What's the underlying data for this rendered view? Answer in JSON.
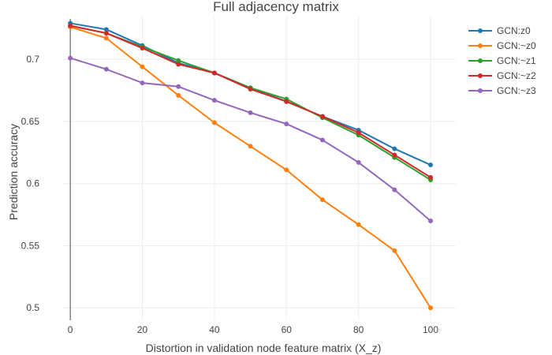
{
  "chart_data": {
    "type": "line",
    "title": "Full adjacency matrix",
    "xlabel": "Distortion in validation node feature matrix (X_z)",
    "ylabel": "Prediction accuracy",
    "xlim": [
      -2,
      107
    ],
    "ylim": [
      0.49,
      0.735
    ],
    "xticks": [
      0,
      20,
      40,
      60,
      80,
      100
    ],
    "xtick_labels": [
      "0",
      "20",
      "40",
      "60",
      "80",
      "100"
    ],
    "yticks": [
      0.5,
      0.55,
      0.6,
      0.65,
      0.7
    ],
    "ytick_labels": [
      "0.5",
      "0.55",
      "0.6",
      "0.65",
      "0.7"
    ],
    "grid": true,
    "legend_position": "top-right",
    "x": [
      0,
      10,
      20,
      30,
      40,
      50,
      60,
      70,
      80,
      90,
      100
    ],
    "series": [
      {
        "name": "GCN:z0",
        "color": "#1f77b4",
        "values": [
          0.729,
          0.724,
          0.711,
          0.697,
          0.689,
          0.677,
          0.666,
          0.654,
          0.643,
          0.628,
          0.615
        ]
      },
      {
        "name": "GCN:~z0",
        "color": "#ff7f0e",
        "values": [
          0.726,
          0.717,
          0.694,
          0.671,
          0.649,
          0.63,
          0.611,
          0.587,
          0.567,
          0.546,
          0.5
        ]
      },
      {
        "name": "GCN:~z1",
        "color": "#2ca02c",
        "values": [
          0.727,
          0.721,
          0.71,
          0.699,
          0.689,
          0.677,
          0.668,
          0.653,
          0.639,
          0.621,
          0.603
        ]
      },
      {
        "name": "GCN:~z2",
        "color": "#d62728",
        "values": [
          0.727,
          0.721,
          0.709,
          0.696,
          0.689,
          0.676,
          0.666,
          0.654,
          0.641,
          0.623,
          0.605
        ]
      },
      {
        "name": "GCN:~z3",
        "color": "#9467bd",
        "values": [
          0.701,
          0.692,
          0.681,
          0.678,
          0.667,
          0.657,
          0.648,
          0.635,
          0.617,
          0.595,
          0.57
        ]
      }
    ]
  }
}
